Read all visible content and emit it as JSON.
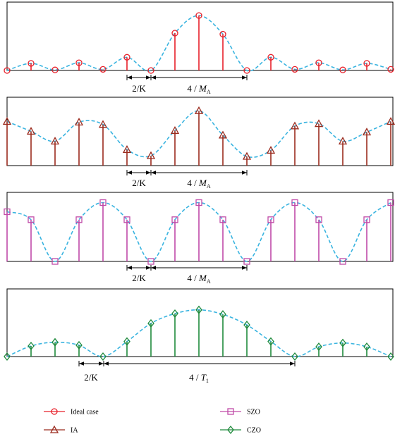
{
  "panels": [
    {
      "id": "ideal",
      "color": "#e8202a",
      "marker": "circle",
      "interval_small": "2/K",
      "interval_large_prefix": "4 / ",
      "interval_large_var": "M",
      "interval_large_sub": "A",
      "samples": [
        0,
        0.13,
        0.01,
        0.14,
        0.02,
        0.24,
        0.0,
        0.68,
        1.0,
        0.66,
        0.0,
        0.24,
        0.02,
        0.14,
        0.01,
        0.13,
        0.02
      ]
    },
    {
      "id": "ia",
      "color": "#9b2b1e",
      "marker": "triangle",
      "interval_small": "2/K",
      "interval_large_prefix": "4 / ",
      "interval_large_var": "M",
      "interval_large_sub": "A",
      "samples": [
        0.58,
        0.45,
        0.32,
        0.57,
        0.54,
        0.21,
        0.13,
        0.46,
        0.72,
        0.4,
        0.12,
        0.2,
        0.52,
        0.55,
        0.32,
        0.44,
        0.58
      ]
    },
    {
      "id": "szo",
      "color": "#c04aa8",
      "marker": "square",
      "interval_small": "2/K",
      "interval_large_prefix": "4 / ",
      "interval_large_var": "M",
      "interval_large_sub": "A",
      "samples": [
        0.81,
        0.68,
        0.0,
        0.68,
        0.96,
        0.68,
        0.0,
        0.68,
        0.96,
        0.68,
        0.0,
        0.68,
        0.96,
        0.68,
        0.0,
        0.68,
        0.96
      ]
    },
    {
      "id": "czo",
      "color": "#1f8a3c",
      "marker": "diamond",
      "interval_small": "2/K",
      "interval_large_prefix": "4 / ",
      "interval_large_var": "T",
      "interval_large_sub": "1",
      "samples": [
        0.0,
        0.14,
        0.19,
        0.15,
        0.0,
        0.2,
        0.44,
        0.57,
        0.62,
        0.56,
        0.42,
        0.2,
        0.0,
        0.13,
        0.18,
        0.13,
        0.0
      ]
    }
  ],
  "legend": [
    {
      "label": "Ideal case",
      "color": "#e8202a",
      "marker": "circle"
    },
    {
      "label": "IA",
      "color": "#9b2b1e",
      "marker": "triangle"
    },
    {
      "label": "SZO",
      "color": "#c04aa8",
      "marker": "square"
    },
    {
      "label": "CZO",
      "color": "#1f8a3c",
      "marker": "diamond"
    }
  ],
  "curve_color": "#3ab4e0"
}
